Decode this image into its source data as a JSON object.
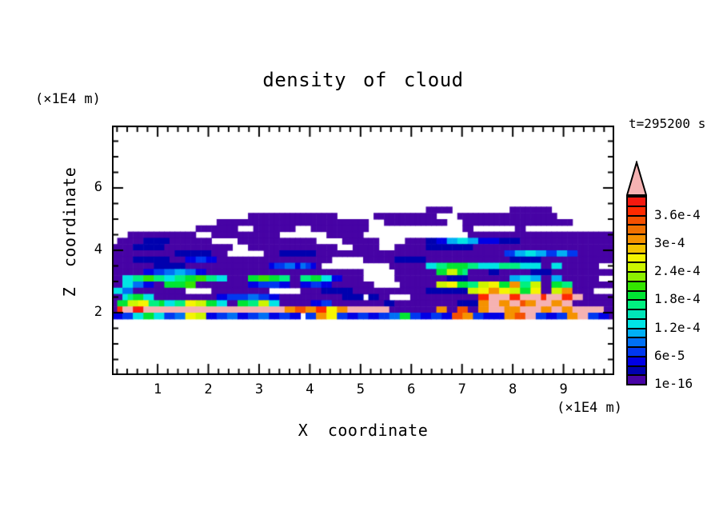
{
  "header": {
    "title": "density of cloud"
  },
  "labels": {
    "y_unit": "(×1E4 m)",
    "x_unit": "(×1E4 m)",
    "time": "t=295200 s",
    "x_axis": "X coordinate",
    "y_axis": "Z coordinate"
  },
  "chart_data": {
    "type": "heatmap",
    "title": "density of cloud",
    "xlabel": "X coordinate",
    "ylabel": "Z coordinate",
    "x_unit": "(×1E4 m)",
    "y_unit": "(×1E4 m)",
    "time_label": "t=295200 s",
    "xlim": [
      0.1,
      10
    ],
    "ylim": [
      0,
      8
    ],
    "x_major_ticks": [
      1,
      2,
      3,
      4,
      5,
      6,
      7,
      8,
      9
    ],
    "x_tick_labels": [
      "1",
      "2",
      "3",
      "4",
      "5",
      "6",
      "7",
      "8",
      "9"
    ],
    "x_minor_step": 0.2,
    "y_major_ticks": [
      2,
      4,
      6
    ],
    "y_tick_labels": [
      "2",
      "4",
      "6"
    ],
    "y_minor_step": 0.5,
    "grid_lines": "off",
    "colorbar": {
      "position": "right",
      "labels": [
        "3.6e-4",
        "3e-4",
        "2.4e-4",
        "1.8e-4",
        "1.2e-4",
        "6e-5",
        "1e-16"
      ],
      "label_boundary_indices": [
        2,
        5,
        8,
        11,
        14,
        17,
        20
      ],
      "level_bounds": [
        1e-16,
        2e-05,
        4e-05,
        6e-05,
        8e-05,
        0.0001,
        0.00012,
        0.00014,
        0.00016,
        0.00018,
        0.0002,
        0.00022,
        0.00024,
        0.00026,
        0.00028,
        0.0003,
        0.00032,
        0.00034,
        0.00036,
        0.00038,
        0.0004
      ],
      "cell_colors_top_to_bottom": [
        "#F5190F",
        "#FF2A00",
        "#F55000",
        "#F07000",
        "#F59200",
        "#F5C400",
        "#F5F500",
        "#CCF500",
        "#8CF000",
        "#33E500",
        "#00E533",
        "#00F080",
        "#00E5B8",
        "#00E5E5",
        "#00AFF5",
        "#0070F5",
        "#0038F0",
        "#0000E5",
        "#0000AF",
        "#4703A5"
      ],
      "over_color": "#F5B2B2"
    },
    "palette": {
      "1": "#4703A5",
      "2": "#0000AF",
      "3": "#0000E5",
      "4": "#0038F0",
      "5": "#0070F5",
      "6": "#00AFF5",
      "7": "#00E5E5",
      "8": "#00E5B8",
      "9": "#00F080",
      "a": "#00E533",
      "b": "#33E500",
      "c": "#8CF000",
      "d": "#CCF500",
      "e": "#F5F500",
      "f": "#F5C400",
      "g": "#F59200",
      "h": "#F07000",
      "i": "#F55000",
      "j": "#FF2A00",
      "k": "#F5190F",
      "p": "#F5B2B2"
    },
    "grid": {
      "cols": 96,
      "top_z": 5.4,
      "row_dz": 0.2,
      "x_range": [
        0.1,
        10
      ],
      "rows": [
        "............................................................11111...........11111111............",
        "..........................11111111111111111.......111111111111....1111111111111111111.........",
        "....................11111111111111111111111111111...111111111111...111111111111111111111.......",
        "................11111111...11111111...11111111111..................11........11................",
        "...1111111111111...1111111111111.........1111111....................1111111111111111111111111111",
        ".111112222211111111.....111111111111111.....1111111.....1111223366776633332222111111111111111111",
        "11112222221111111111111...11111111111111111...11111...111111222222222111111111111111111111111111",
        "1111111111112222222111.......11122222221111111111111111111111111111111111114466776644664411111111",
        "111122222221113344331111111111111111111111......11111122222211111111111111112222221111111111111111",
        "1111111122222211111111111111113445535431.............11111117799aaaa9977779999777711771111111...",
        "111111334455665533111111111111111111111111111111......11111111aadda91111221111112222111111111111",
        "117799bb997799aabb99771111aabbaa991199aa77331111......111111111122221111111166776611661111111...",
        "1177553311aaaabb1111111111334444331133443311111111.....1111111ddeeaa99ddeeaagg99dd11aa9911111111",
        "77551111111111.....11111111111......11112222221111111111111122222222ddeeggeeddaaee11ddgg1111....",
        "1179aa771111111111113344445544331111111111112222 2211....1111111111111jjppppjjppppjpppjjpp1111111",
        "1aaddee99a7799eeddaa7711aa99dd7711111133441111111111221111111111112222ggppggppiggpppggpp11111111",
        "1jppkkpppppppppppppppppppppppppppggiiggjjeeggpppppppp111111111gg11ii11ggpppgggppppggppggpppppp11",
        "334477aa774455eedd334455334455334433 44ggee443344334455aa44334433iigg443333ggiipp443344ggpp443311"
      ]
    }
  }
}
